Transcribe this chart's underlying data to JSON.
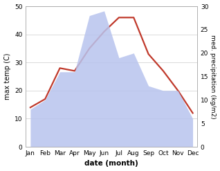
{
  "months": [
    "Jan",
    "Feb",
    "Mar",
    "Apr",
    "May",
    "Jun",
    "Jul",
    "Aug",
    "Sep",
    "Oct",
    "Nov",
    "Dec"
  ],
  "month_positions": [
    0,
    1,
    2,
    3,
    4,
    5,
    6,
    7,
    8,
    9,
    10,
    11
  ],
  "temperature": [
    14,
    17,
    28,
    27,
    35,
    41,
    46,
    46,
    33,
    27,
    20,
    12
  ],
  "precipitation": [
    8,
    10,
    16,
    16,
    28,
    29,
    19,
    20,
    13,
    12,
    12,
    6
  ],
  "temp_color": "#c0392b",
  "precip_fill_color": "#b8c4ee",
  "precip_fill_alpha": 0.85,
  "temp_ylim": [
    0,
    50
  ],
  "precip_ylim": [
    0,
    30
  ],
  "temp_yticks": [
    0,
    10,
    20,
    30,
    40,
    50
  ],
  "precip_yticks": [
    0,
    5,
    10,
    15,
    20,
    25,
    30
  ],
  "xlabel": "date (month)",
  "ylabel_left": "max temp (C)",
  "ylabel_right": "med. precipitation (kg/m2)",
  "background_color": "#ffffff",
  "line_width": 1.6,
  "grid_color": "#cccccc"
}
